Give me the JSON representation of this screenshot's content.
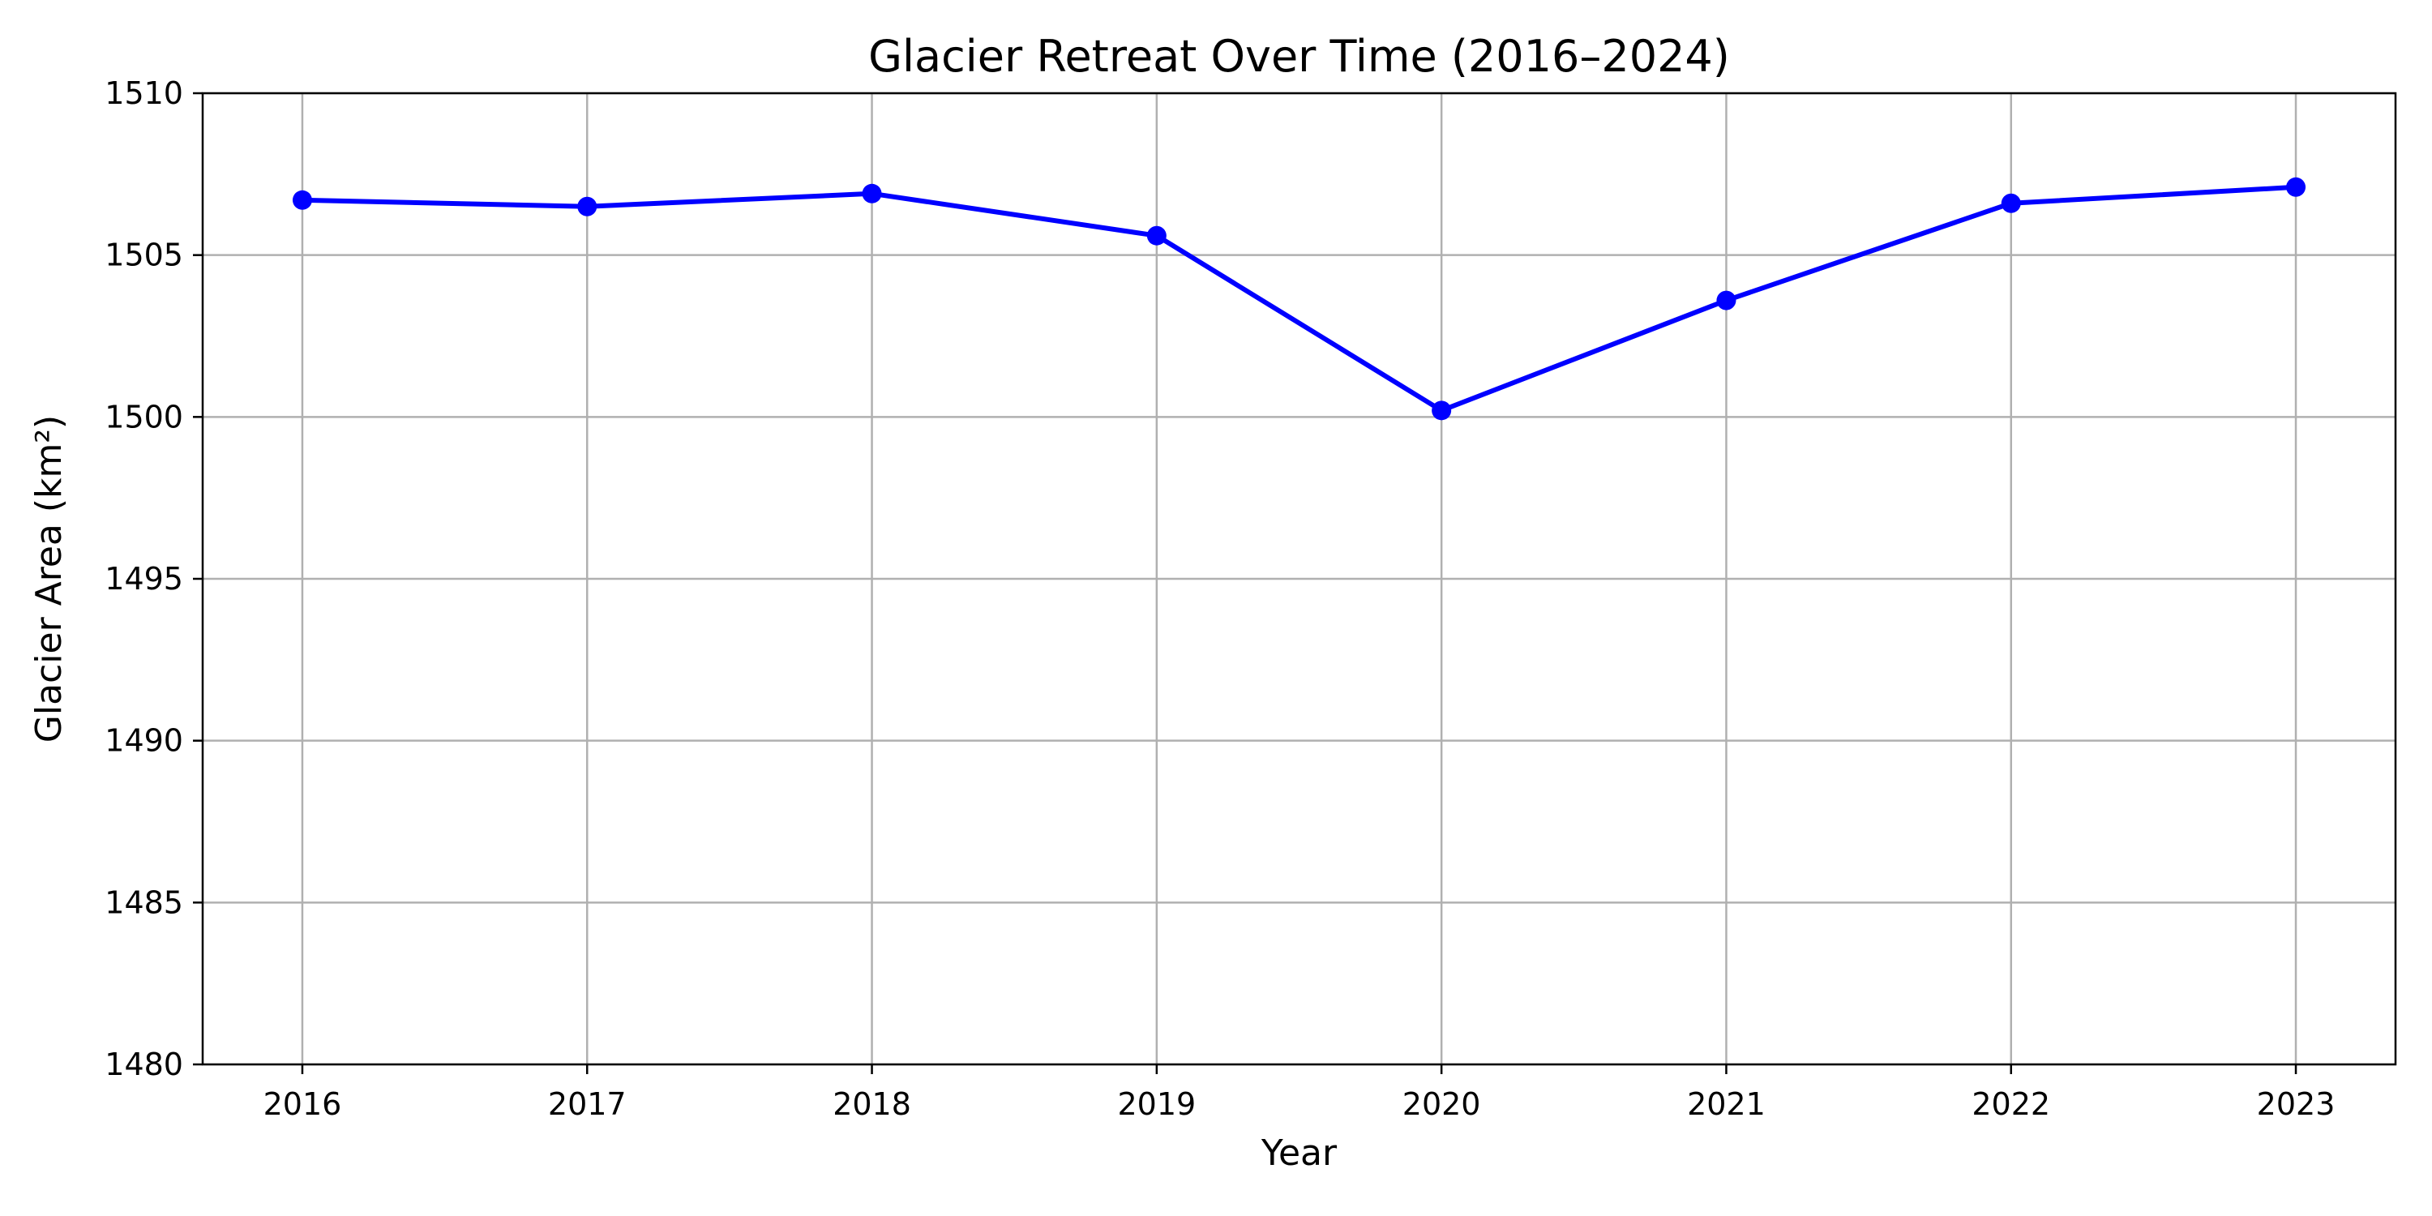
{
  "chart_data": {
    "type": "line",
    "title": "Glacier Retreat Over Time (2016–2024)",
    "xlabel": "Year",
    "ylabel": "Glacier Area (km²)",
    "categories": [
      "2016",
      "2017",
      "2018",
      "2019",
      "2020",
      "2021",
      "2022",
      "2023"
    ],
    "x": [
      2016,
      2017,
      2018,
      2019,
      2020,
      2021,
      2022,
      2023
    ],
    "series": [
      {
        "values": [
          1506.7,
          1506.5,
          1506.9,
          1505.6,
          1500.2,
          1503.6,
          1506.6,
          1507.1
        ],
        "color": "#0000ff",
        "marker": "circle"
      }
    ],
    "ylim": [
      1480,
      1510
    ],
    "yticks": [
      1480,
      1485,
      1490,
      1495,
      1500,
      1505,
      1510
    ],
    "grid": true,
    "legend": "none"
  }
}
